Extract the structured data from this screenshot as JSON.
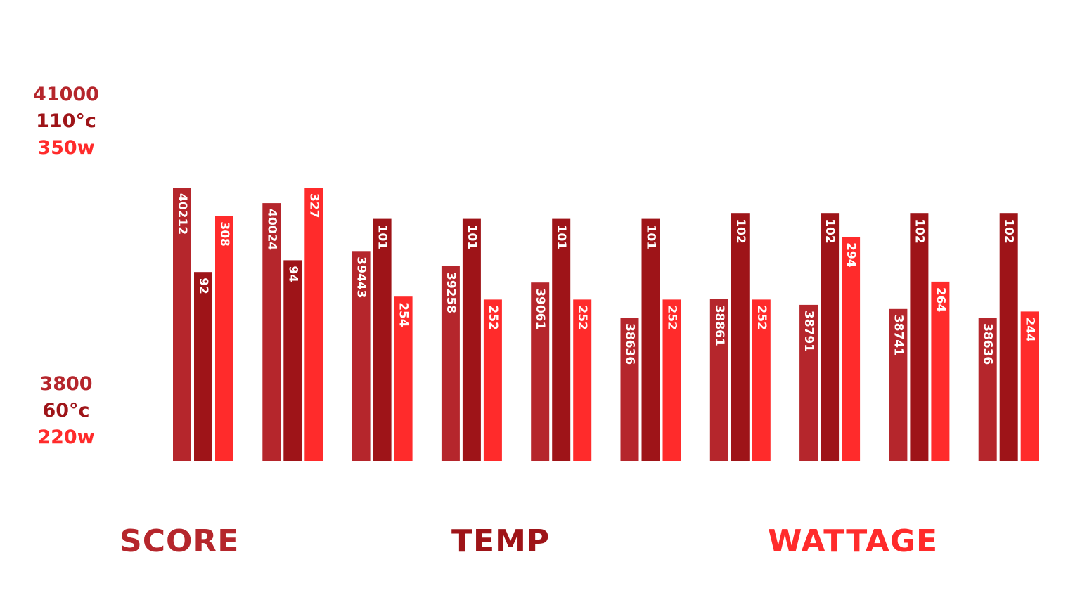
{
  "colors": {
    "score": "#b5262c",
    "temp": "#9e1418",
    "wattage": "#ff2b2b"
  },
  "axis": {
    "top": {
      "score": "41000",
      "temp": "110°c",
      "wattage": "350w"
    },
    "bottom": {
      "score": "3800",
      "temp": "60°c",
      "wattage": "220w"
    }
  },
  "legend": {
    "score": "SCORE",
    "temp": "TEMP",
    "wattage": "WATTAGE"
  },
  "chart_data": {
    "type": "bar",
    "categories": [
      "",
      "",
      "",
      "",
      "",
      "",
      "",
      "",
      "",
      ""
    ],
    "series": [
      {
        "name": "SCORE",
        "values": [
          40212,
          40024,
          39443,
          39258,
          39061,
          38636,
          38861,
          38791,
          38741,
          38636
        ]
      },
      {
        "name": "TEMP",
        "values": [
          92,
          94,
          101,
          101,
          101,
          101,
          102,
          102,
          102,
          102
        ]
      },
      {
        "name": "WATTAGE",
        "values": [
          308,
          327,
          254,
          252,
          252,
          252,
          252,
          294,
          264,
          244
        ]
      }
    ],
    "legend_position": "bottom",
    "grid": false
  }
}
